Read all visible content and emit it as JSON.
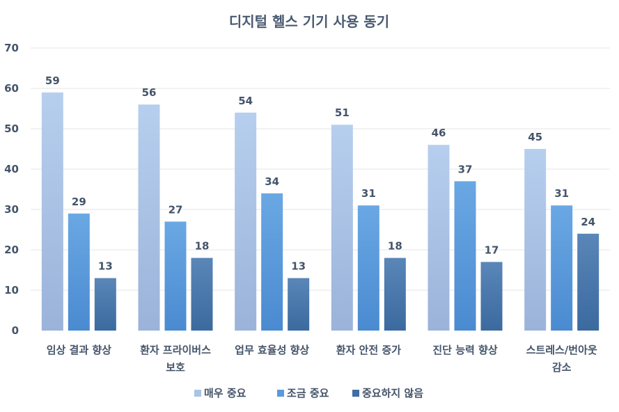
{
  "chart_data": {
    "type": "bar",
    "title": "디지털 헬스 기기 사용 동기",
    "categories": [
      [
        "임상 결과 향상"
      ],
      [
        "환자 프라이버스",
        "보호"
      ],
      [
        "업무 효율성 향상"
      ],
      [
        "환자 안전 증가"
      ],
      [
        "진단 능력 향상"
      ],
      [
        "스트레스/번아웃",
        "감소"
      ]
    ],
    "series": [
      {
        "name": "매우 중요",
        "values": [
          59,
          56,
          54,
          51,
          46,
          45
        ],
        "color": "#a8c4e6"
      },
      {
        "name": "조금 중요",
        "values": [
          29,
          27,
          34,
          31,
          37,
          31
        ],
        "color": "#5a9ad8"
      },
      {
        "name": "중요하지 않음",
        "values": [
          13,
          18,
          13,
          18,
          17,
          24
        ],
        "color": "#3f6fa3"
      }
    ],
    "ylim": [
      0,
      70
    ],
    "yticks": [
      0,
      10,
      20,
      30,
      40,
      50,
      60,
      70
    ],
    "grid": true,
    "legend": "bottom"
  }
}
